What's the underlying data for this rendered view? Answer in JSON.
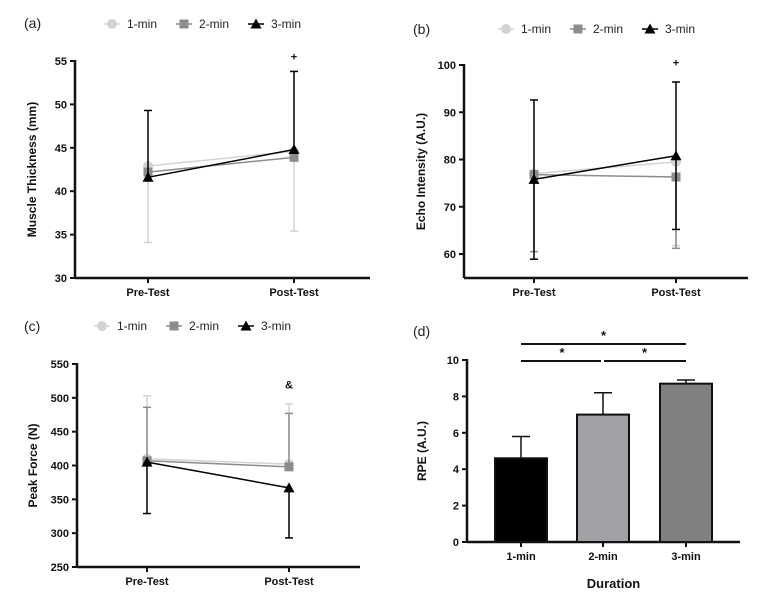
{
  "colors": {
    "1-min": "#d3d3d3",
    "2-min": "#8c8c8c",
    "3-min": "#000000",
    "bar1": "#000000",
    "bar2": "#a2a2a6",
    "bar3": "#808080"
  },
  "chart_data": [
    {
      "panel": "(a)",
      "type": "line",
      "ylabel": "Muscle Thickness (mm)",
      "ylim": [
        30,
        55
      ],
      "yticks": [
        30,
        35,
        40,
        45,
        50,
        55
      ],
      "categories": [
        "Pre-Test",
        "Post-Test"
      ],
      "legend": [
        "1-min",
        "2-min",
        "3-min"
      ],
      "series": [
        {
          "name": "1-min",
          "marker": "circle",
          "values": [
            42.9,
            44.6
          ],
          "err_low": [
            34.1,
            35.4
          ],
          "err_high": [
            null,
            null
          ]
        },
        {
          "name": "2-min",
          "marker": "square",
          "values": [
            42.2,
            43.9
          ],
          "err_low": [
            null,
            null
          ],
          "err_high": [
            null,
            null
          ]
        },
        {
          "name": "3-min",
          "marker": "triangle",
          "values": [
            41.6,
            44.8
          ],
          "err_low": [
            null,
            null
          ],
          "err_high": [
            49.3,
            53.8
          ]
        }
      ],
      "annotations": [
        {
          "text": "+",
          "category": "Post-Test",
          "y": 55.5
        }
      ]
    },
    {
      "panel": "(b)",
      "type": "line",
      "ylabel": "Echo Intensity (A.U.)",
      "ylim": [
        55,
        100
      ],
      "yticks": [
        60,
        70,
        80,
        90,
        100
      ],
      "categories": [
        "Pre-Test",
        "Post-Test"
      ],
      "legend": [
        "1-min",
        "2-min",
        "3-min"
      ],
      "series": [
        {
          "name": "1-min",
          "marker": "circle",
          "values": [
            77.0,
            79.5
          ],
          "err_low": [
            60.5,
            61.8
          ],
          "err_high": [
            null,
            null
          ]
        },
        {
          "name": "2-min",
          "marker": "square",
          "values": [
            76.8,
            76.3
          ],
          "err_low": [
            60.5,
            61.2
          ],
          "err_high": [
            null,
            null
          ]
        },
        {
          "name": "3-min",
          "marker": "triangle",
          "values": [
            75.8,
            80.8
          ],
          "err_low": [
            58.9,
            65.2
          ],
          "err_high": [
            92.6,
            96.4
          ]
        }
      ],
      "annotations": [
        {
          "text": "+",
          "category": "Post-Test",
          "y": 100.5
        }
      ]
    },
    {
      "panel": "(c)",
      "type": "line",
      "ylabel": "Peak Force (N)",
      "ylim": [
        250,
        550
      ],
      "yticks": [
        250,
        300,
        350,
        400,
        450,
        500,
        550
      ],
      "categories": [
        "Pre-Test",
        "Post-Test"
      ],
      "legend": [
        "1-min",
        "2-min",
        "3-min"
      ],
      "series": [
        {
          "name": "1-min",
          "marker": "circle",
          "values": [
            410,
            402
          ],
          "err_low": [
            null,
            null
          ],
          "err_high": [
            503,
            491
          ]
        },
        {
          "name": "2-min",
          "marker": "square",
          "values": [
            407,
            398
          ],
          "err_low": [
            null,
            null
          ],
          "err_high": [
            486,
            477
          ]
        },
        {
          "name": "3-min",
          "marker": "triangle",
          "values": [
            405,
            367
          ],
          "err_low": [
            329,
            293
          ],
          "err_high": [
            null,
            null
          ]
        }
      ],
      "annotations": [
        {
          "text": "&",
          "category": "Post-Test",
          "y": 520
        }
      ]
    },
    {
      "panel": "(d)",
      "type": "bar",
      "xlabel": "Duration",
      "ylabel": "RPE (A.U.)",
      "ylim": [
        0,
        10
      ],
      "yticks": [
        0,
        2,
        4,
        6,
        8,
        10
      ],
      "categories": [
        "1-min",
        "2-min",
        "3-min"
      ],
      "values": [
        4.6,
        7.0,
        8.7
      ],
      "err_high": [
        5.8,
        8.2,
        8.9
      ],
      "significance": [
        {
          "from": "1-min",
          "to": "2-min",
          "text": "*"
        },
        {
          "from": "2-min",
          "to": "3-min",
          "text": "*"
        },
        {
          "from": "1-min",
          "to": "3-min",
          "text": "*"
        }
      ]
    }
  ]
}
